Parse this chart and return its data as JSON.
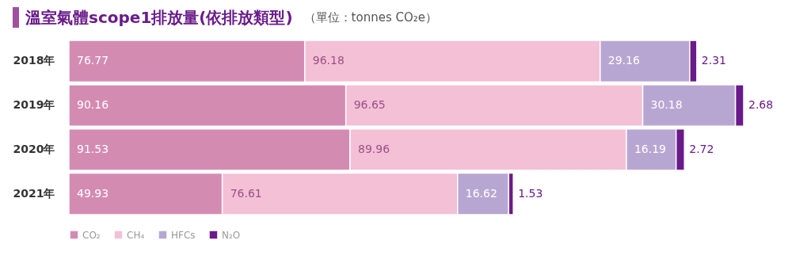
{
  "chart_data": {
    "type": "bar",
    "orientation": "horizontal",
    "stacked": true,
    "data_labels": true,
    "legend": "bottom left",
    "title": "溫室氣體scope1排放量(依排放類型)",
    "subtitle": "（單位：tonnes CO₂e）",
    "categories": [
      "2018年",
      "2019年",
      "2020年",
      "2021年"
    ],
    "series": [
      {
        "name": "CO₂",
        "color": "#d48bb2",
        "values": [
          76.77,
          90.16,
          91.53,
          49.93
        ]
      },
      {
        "name": "CH₄",
        "color": "#f4c0d6",
        "values": [
          96.18,
          96.65,
          89.96,
          76.61
        ]
      },
      {
        "name": "HFCs",
        "color": "#b8a6d2",
        "values": [
          29.16,
          30.18,
          16.19,
          16.62
        ]
      },
      {
        "name": "N₂O",
        "color": "#6a1b8a",
        "values": [
          2.31,
          2.68,
          2.72,
          1.53
        ]
      }
    ]
  }
}
